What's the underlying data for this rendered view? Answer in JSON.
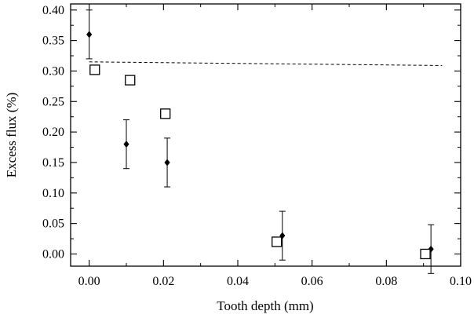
{
  "chart_data": {
    "type": "scatter",
    "xlabel": "Tooth depth (mm)",
    "ylabel": "Excess flux (%)",
    "xlim": [
      -0.005,
      0.1
    ],
    "ylim": [
      -0.02,
      0.41
    ],
    "xticks": [
      "0.00",
      "0.02",
      "0.04",
      "0.06",
      "0.08",
      "0.10"
    ],
    "yticks": [
      "0.00",
      "0.05",
      "0.10",
      "0.15",
      "0.20",
      "0.25",
      "0.30",
      "0.35",
      "0.40"
    ],
    "grid": false,
    "series": [
      {
        "marker": "filled-diamond",
        "x": [
          0.0,
          0.01,
          0.021,
          0.052,
          0.092
        ],
        "y": [
          0.36,
          0.18,
          0.15,
          0.03,
          0.008
        ],
        "err_low": [
          0.32,
          0.14,
          0.11,
          -0.01,
          -0.032
        ],
        "err_high": [
          0.4,
          0.22,
          0.19,
          0.07,
          0.048
        ]
      },
      {
        "marker": "open-square",
        "x": [
          0.0015,
          0.011,
          0.0205,
          0.0505,
          0.0905
        ],
        "y": [
          0.302,
          0.285,
          0.23,
          0.02,
          0.0
        ]
      },
      {
        "marker": "dashed-line",
        "x": [
          0.0,
          0.095
        ],
        "y": [
          0.315,
          0.309
        ]
      }
    ],
    "colors": {
      "ink": "#000000",
      "background": "#ffffff"
    }
  }
}
